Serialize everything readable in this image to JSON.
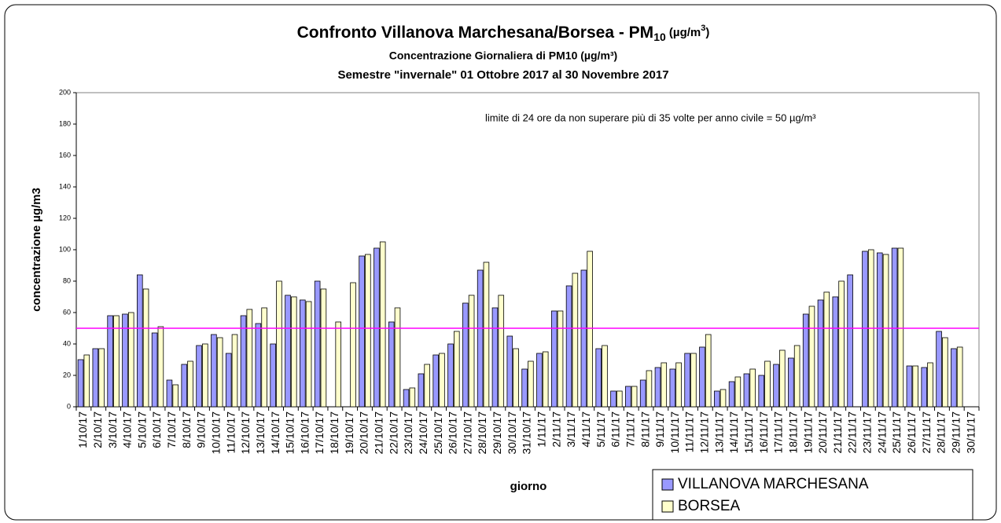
{
  "chart_data": {
    "type": "bar",
    "title": {
      "main": "Confronto Villanova Marchesana/Borsea - PM",
      "sub": "10",
      "unit": " (µg/m",
      "sup": "3",
      "end": ")"
    },
    "subtitle": "Concentrazione Giornaliera di PM10 (µg/m³)",
    "subtitle2": "Semestre \"invernale\" 01 Ottobre 2017 al 30 Novembre 2017",
    "annotation": "limite di 24 ore da non superare più di 35 volte per anno civile = 50 µg/m³",
    "x_label": "giorno",
    "y_label": "concentrazione µg/m3",
    "limit": 50,
    "limit_color": "#ff00ff",
    "categories": [
      "1/10/17",
      "2/10/17",
      "3/10/17",
      "4/10/17",
      "5/10/17",
      "6/10/17",
      "7/10/17",
      "8/10/17",
      "9/10/17",
      "10/10/17",
      "11/10/17",
      "12/10/17",
      "13/10/17",
      "14/10/17",
      "15/10/17",
      "16/10/17",
      "17/10/17",
      "18/10/17",
      "19/10/17",
      "20/10/17",
      "21/10/17",
      "22/10/17",
      "23/10/17",
      "24/10/17",
      "25/10/17",
      "26/10/17",
      "27/10/17",
      "28/10/17",
      "29/10/17",
      "30/10/17",
      "31/10/17",
      "1/11/17",
      "2/11/17",
      "3/11/17",
      "4/11/17",
      "5/11/17",
      "6/11/17",
      "7/11/17",
      "8/11/17",
      "9/11/17",
      "10/11/17",
      "11/11/17",
      "12/11/17",
      "13/11/17",
      "14/11/17",
      "15/11/17",
      "16/11/17",
      "17/11/17",
      "18/11/17",
      "19/11/17",
      "20/11/17",
      "21/11/17",
      "22/11/17",
      "23/11/17",
      "24/11/17",
      "25/11/17",
      "26/11/17",
      "27/11/17",
      "28/11/17",
      "29/11/17",
      "30/11/17"
    ],
    "series": [
      {
        "name": "VILLANOVA MARCHESANA",
        "color": "#9999ff",
        "values": [
          30,
          37,
          58,
          59,
          84,
          47,
          17,
          27,
          39,
          46,
          34,
          58,
          53,
          40,
          71,
          68,
          80,
          null,
          null,
          96,
          101,
          54,
          11,
          21,
          33,
          40,
          66,
          87,
          63,
          45,
          24,
          34,
          61,
          77,
          87,
          37,
          10,
          13,
          17,
          25,
          24,
          34,
          38,
          10,
          16,
          21,
          20,
          27,
          31,
          59,
          68,
          70,
          84,
          99,
          98,
          101,
          26,
          25,
          48,
          37,
          null
        ]
      },
      {
        "name": "BORSEA",
        "color": "#ffffcc",
        "values": [
          33,
          37,
          58,
          60,
          75,
          51,
          14,
          29,
          40,
          44,
          46,
          62,
          63,
          80,
          70,
          67,
          75,
          54,
          79,
          97,
          105,
          63,
          12,
          27,
          34,
          48,
          71,
          92,
          71,
          37,
          29,
          35,
          61,
          85,
          99,
          39,
          10,
          13,
          23,
          28,
          28,
          34,
          46,
          11,
          19,
          24,
          29,
          36,
          39,
          64,
          73,
          80,
          null,
          100,
          97,
          101,
          26,
          28,
          44,
          38,
          null
        ]
      }
    ],
    "ylim": [
      0,
      200
    ],
    "yticks": [
      0,
      20,
      40,
      60,
      80,
      100,
      120,
      140,
      160,
      180,
      200
    ],
    "grid": false
  }
}
